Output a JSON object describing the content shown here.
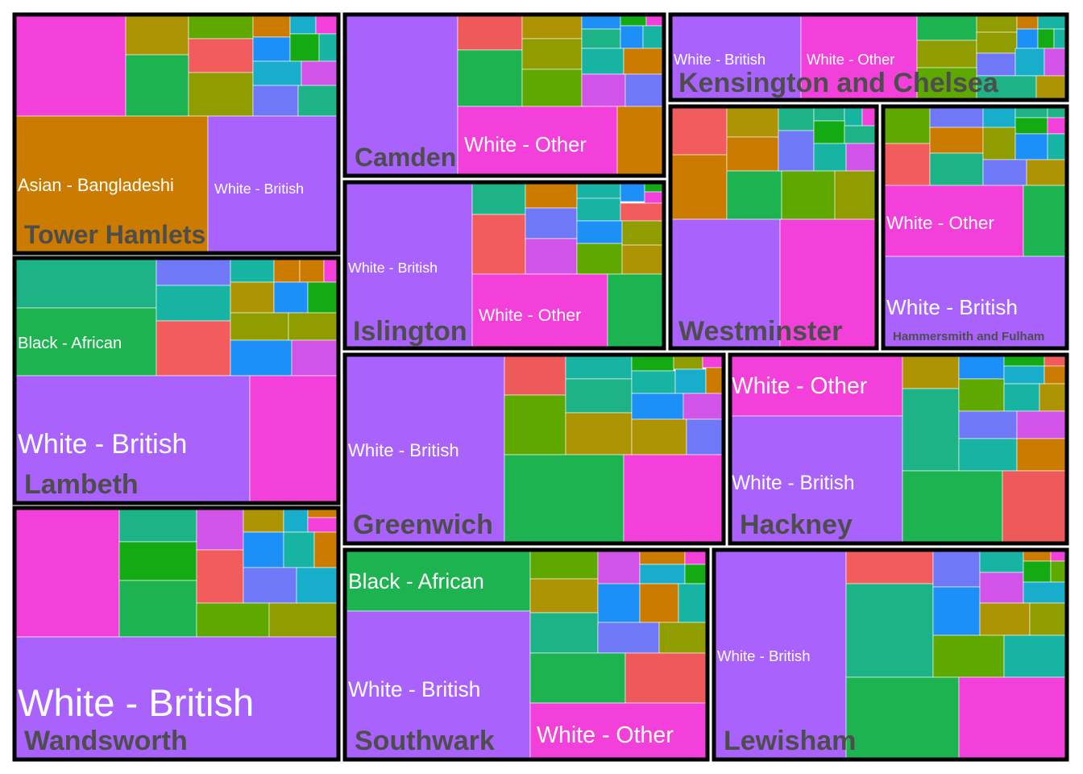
{
  "chart_data": {
    "type": "treemap",
    "colors": {
      "magenta": "#F340DA",
      "violet": "#A963FC",
      "orange": "#CB7C00",
      "olive": "#AE9404",
      "green": "#1DB350",
      "darkgreen": "#14AA14",
      "olivegreen": "#8F9D00",
      "lime": "#5FA800",
      "coral": "#F25C5C",
      "teal": "#1DB386",
      "tealblue": "#17B3A3",
      "cyan": "#17ADCB",
      "blue": "#1C90F7",
      "periwinkle": "#6F78F7",
      "orchid": "#D153E8",
      "red": "#EE5A5A",
      "outline": "#000000",
      "label": "#4d4d4d",
      "tilelabel": "#ffffff"
    },
    "groups": [
      {
        "name": "Tower Hamlets",
        "labels": [
          "Asian - Bangladeshi",
          "White - British"
        ],
        "other_tiles": 16
      },
      {
        "name": "Camden",
        "labels": [
          "White - Other"
        ],
        "other_tiles": 16
      },
      {
        "name": "Kensington and Chelsea",
        "labels": [
          "White - British",
          "White - Other"
        ],
        "other_tiles": 14
      },
      {
        "name": "Lambeth",
        "labels": [
          "White - British",
          "Black - African"
        ],
        "other_tiles": 14
      },
      {
        "name": "Islington",
        "labels": [
          "White - British",
          "White - Other"
        ],
        "other_tiles": 14
      },
      {
        "name": "Westminster",
        "labels": [],
        "other_tiles": 16
      },
      {
        "name": "Hammersmith and Fulham",
        "labels": [
          "White - British",
          "White - Other"
        ],
        "other_tiles": 14
      },
      {
        "name": "Greenwich",
        "labels": [
          "White - British"
        ],
        "other_tiles": 15
      },
      {
        "name": "Hackney",
        "labels": [
          "White - Other",
          "White - British"
        ],
        "other_tiles": 15
      },
      {
        "name": "Wandsworth",
        "labels": [
          "White - British"
        ],
        "other_tiles": 16
      },
      {
        "name": "Southwark",
        "labels": [
          "Black - African",
          "White - British",
          "White - Other"
        ],
        "other_tiles": 15
      },
      {
        "name": "Lewisham",
        "labels": [
          "White - British"
        ],
        "other_tiles": 15
      }
    ]
  }
}
